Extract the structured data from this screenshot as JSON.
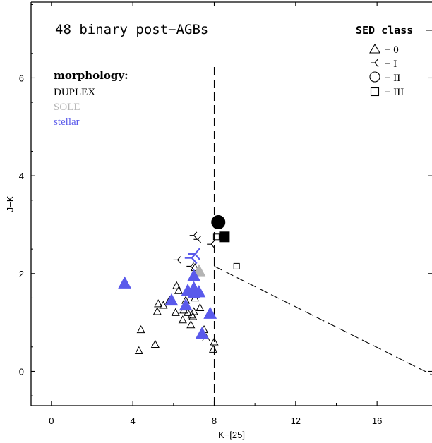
{
  "chart_data": {
    "type": "scatter",
    "title": "48 binary post−AGBs",
    "xlabel": "K−[25]",
    "ylabel": "J−K",
    "xlim": [
      -1,
      18.7
    ],
    "ylim": [
      -0.7,
      7.55
    ],
    "xticks": [
      0,
      4,
      8,
      12,
      16
    ],
    "yticks": [
      0,
      2,
      4,
      6
    ],
    "xtick_labels": [
      "0",
      "4",
      "8",
      "12",
      "16"
    ],
    "ytick_labels": [
      "0",
      "2",
      "4",
      "6"
    ],
    "grid": false,
    "morphology": {
      "heading": "morphology:",
      "items": [
        {
          "label": "DUPLEX",
          "color": "#000000"
        },
        {
          "label": "SOLE",
          "color": "#b4b4b4"
        },
        {
          "label": "stellar",
          "color": "#5a5aeb"
        }
      ]
    },
    "legend": {
      "title": "SED class",
      "placement": "top-right",
      "entries": [
        {
          "label": "− 0",
          "marker": "triangle"
        },
        {
          "label": "− I",
          "marker": "tri-left"
        },
        {
          "label": "− II",
          "marker": "circle"
        },
        {
          "label": "− III",
          "marker": "square"
        }
      ]
    },
    "boundaries": [
      {
        "style": "dashed",
        "points": [
          [
            8.0,
            -0.7
          ],
          [
            8.0,
            6.3
          ]
        ]
      },
      {
        "style": "dashed",
        "points": [
          [
            8.0,
            2.15
          ],
          [
            18.7,
            -0.07
          ]
        ]
      }
    ],
    "series": [
      {
        "morphology": "DUPLEX",
        "sed_class": "0",
        "marker": "triangle",
        "filled": false,
        "color": "#000000",
        "x": [
          4.3,
          4.4,
          5.1,
          5.2,
          5.25,
          5.5,
          5.8,
          6.0,
          6.1,
          6.15,
          6.25,
          6.45,
          6.5,
          6.6,
          6.7,
          6.85,
          6.9,
          6.95,
          7.0,
          7.05,
          7.3,
          7.5,
          7.6,
          7.95,
          8.0,
          7.05
        ],
        "y": [
          0.42,
          0.85,
          0.55,
          1.22,
          1.38,
          1.35,
          1.45,
          1.42,
          1.2,
          1.75,
          1.65,
          1.05,
          1.25,
          1.45,
          1.2,
          0.95,
          1.15,
          1.12,
          1.22,
          1.5,
          1.3,
          0.85,
          0.68,
          0.45,
          0.6,
          2.12
        ]
      },
      {
        "morphology": "DUPLEX",
        "sed_class": "I",
        "marker": "tri-left",
        "filled": false,
        "color": "#000000",
        "x": [
          6.2,
          7.0,
          7.2,
          7.85,
          6.85
        ],
        "y": [
          2.28,
          2.78,
          2.7,
          2.6,
          2.15
        ]
      },
      {
        "morphology": "DUPLEX",
        "sed_class": "II",
        "marker": "circle",
        "filled": true,
        "color": "#000000",
        "x": [
          8.2
        ],
        "y": [
          3.05
        ]
      },
      {
        "morphology": "DUPLEX",
        "sed_class": "III",
        "marker": "square",
        "filled": true,
        "color": "#000000",
        "x": [
          8.5
        ],
        "y": [
          2.75
        ]
      },
      {
        "morphology": "DUPLEX",
        "sed_class": "III",
        "marker": "square",
        "filled": false,
        "color": "#000000",
        "x": [
          8.1,
          9.1
        ],
        "y": [
          2.75,
          2.15
        ]
      },
      {
        "morphology": "SOLE",
        "sed_class": "0",
        "marker": "triangle",
        "filled": true,
        "color": "#b4b4b4",
        "x": [
          7.25
        ],
        "y": [
          2.05
        ]
      },
      {
        "morphology": "stellar",
        "sed_class": "0",
        "marker": "triangle",
        "filled": true,
        "color": "#5a5aeb",
        "x": [
          3.6,
          5.9,
          6.6,
          6.7,
          7.0,
          7.0,
          7.25,
          7.4,
          7.8,
          7.0
        ],
        "y": [
          1.8,
          1.45,
          1.35,
          1.65,
          1.7,
          1.95,
          1.62,
          0.77,
          1.18,
          1.6
        ]
      },
      {
        "morphology": "stellar",
        "sed_class": "I",
        "marker": "tri-left",
        "filled": false,
        "color": "#5a5aeb",
        "x": [
          6.9,
          7.05
        ],
        "y": [
          2.32,
          2.4
        ]
      }
    ]
  }
}
